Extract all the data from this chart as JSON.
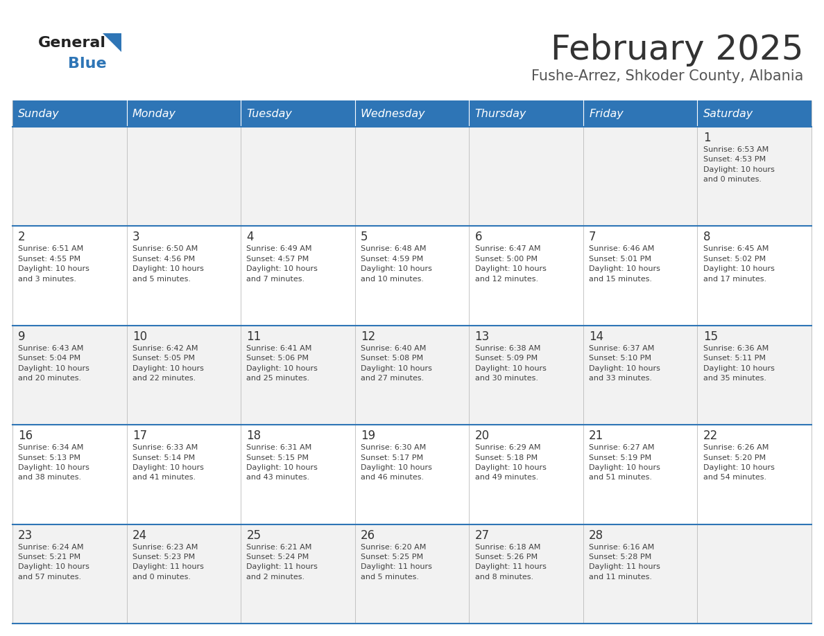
{
  "title": "February 2025",
  "subtitle": "Fushe-Arrez, Shkoder County, Albania",
  "days_of_week": [
    "Sunday",
    "Monday",
    "Tuesday",
    "Wednesday",
    "Thursday",
    "Friday",
    "Saturday"
  ],
  "header_bg": "#2E75B6",
  "header_text_color": "#FFFFFF",
  "cell_bg_odd": "#F2F2F2",
  "cell_bg_even": "#FFFFFF",
  "cell_text_color": "#404040",
  "day_num_color": "#333333",
  "border_color": "#2E75B6",
  "title_color": "#333333",
  "subtitle_color": "#555555",
  "logo_general_color": "#222222",
  "logo_blue_color": "#2E75B6",
  "weeks": [
    {
      "days": [
        {
          "day": null,
          "info": null
        },
        {
          "day": null,
          "info": null
        },
        {
          "day": null,
          "info": null
        },
        {
          "day": null,
          "info": null
        },
        {
          "day": null,
          "info": null
        },
        {
          "day": null,
          "info": null
        },
        {
          "day": 1,
          "info": "Sunrise: 6:53 AM\nSunset: 4:53 PM\nDaylight: 10 hours\nand 0 minutes."
        }
      ]
    },
    {
      "days": [
        {
          "day": 2,
          "info": "Sunrise: 6:51 AM\nSunset: 4:55 PM\nDaylight: 10 hours\nand 3 minutes."
        },
        {
          "day": 3,
          "info": "Sunrise: 6:50 AM\nSunset: 4:56 PM\nDaylight: 10 hours\nand 5 minutes."
        },
        {
          "day": 4,
          "info": "Sunrise: 6:49 AM\nSunset: 4:57 PM\nDaylight: 10 hours\nand 7 minutes."
        },
        {
          "day": 5,
          "info": "Sunrise: 6:48 AM\nSunset: 4:59 PM\nDaylight: 10 hours\nand 10 minutes."
        },
        {
          "day": 6,
          "info": "Sunrise: 6:47 AM\nSunset: 5:00 PM\nDaylight: 10 hours\nand 12 minutes."
        },
        {
          "day": 7,
          "info": "Sunrise: 6:46 AM\nSunset: 5:01 PM\nDaylight: 10 hours\nand 15 minutes."
        },
        {
          "day": 8,
          "info": "Sunrise: 6:45 AM\nSunset: 5:02 PM\nDaylight: 10 hours\nand 17 minutes."
        }
      ]
    },
    {
      "days": [
        {
          "day": 9,
          "info": "Sunrise: 6:43 AM\nSunset: 5:04 PM\nDaylight: 10 hours\nand 20 minutes."
        },
        {
          "day": 10,
          "info": "Sunrise: 6:42 AM\nSunset: 5:05 PM\nDaylight: 10 hours\nand 22 minutes."
        },
        {
          "day": 11,
          "info": "Sunrise: 6:41 AM\nSunset: 5:06 PM\nDaylight: 10 hours\nand 25 minutes."
        },
        {
          "day": 12,
          "info": "Sunrise: 6:40 AM\nSunset: 5:08 PM\nDaylight: 10 hours\nand 27 minutes."
        },
        {
          "day": 13,
          "info": "Sunrise: 6:38 AM\nSunset: 5:09 PM\nDaylight: 10 hours\nand 30 minutes."
        },
        {
          "day": 14,
          "info": "Sunrise: 6:37 AM\nSunset: 5:10 PM\nDaylight: 10 hours\nand 33 minutes."
        },
        {
          "day": 15,
          "info": "Sunrise: 6:36 AM\nSunset: 5:11 PM\nDaylight: 10 hours\nand 35 minutes."
        }
      ]
    },
    {
      "days": [
        {
          "day": 16,
          "info": "Sunrise: 6:34 AM\nSunset: 5:13 PM\nDaylight: 10 hours\nand 38 minutes."
        },
        {
          "day": 17,
          "info": "Sunrise: 6:33 AM\nSunset: 5:14 PM\nDaylight: 10 hours\nand 41 minutes."
        },
        {
          "day": 18,
          "info": "Sunrise: 6:31 AM\nSunset: 5:15 PM\nDaylight: 10 hours\nand 43 minutes."
        },
        {
          "day": 19,
          "info": "Sunrise: 6:30 AM\nSunset: 5:17 PM\nDaylight: 10 hours\nand 46 minutes."
        },
        {
          "day": 20,
          "info": "Sunrise: 6:29 AM\nSunset: 5:18 PM\nDaylight: 10 hours\nand 49 minutes."
        },
        {
          "day": 21,
          "info": "Sunrise: 6:27 AM\nSunset: 5:19 PM\nDaylight: 10 hours\nand 51 minutes."
        },
        {
          "day": 22,
          "info": "Sunrise: 6:26 AM\nSunset: 5:20 PM\nDaylight: 10 hours\nand 54 minutes."
        }
      ]
    },
    {
      "days": [
        {
          "day": 23,
          "info": "Sunrise: 6:24 AM\nSunset: 5:21 PM\nDaylight: 10 hours\nand 57 minutes."
        },
        {
          "day": 24,
          "info": "Sunrise: 6:23 AM\nSunset: 5:23 PM\nDaylight: 11 hours\nand 0 minutes."
        },
        {
          "day": 25,
          "info": "Sunrise: 6:21 AM\nSunset: 5:24 PM\nDaylight: 11 hours\nand 2 minutes."
        },
        {
          "day": 26,
          "info": "Sunrise: 6:20 AM\nSunset: 5:25 PM\nDaylight: 11 hours\nand 5 minutes."
        },
        {
          "day": 27,
          "info": "Sunrise: 6:18 AM\nSunset: 5:26 PM\nDaylight: 11 hours\nand 8 minutes."
        },
        {
          "day": 28,
          "info": "Sunrise: 6:16 AM\nSunset: 5:28 PM\nDaylight: 11 hours\nand 11 minutes."
        },
        {
          "day": null,
          "info": null
        }
      ]
    }
  ]
}
